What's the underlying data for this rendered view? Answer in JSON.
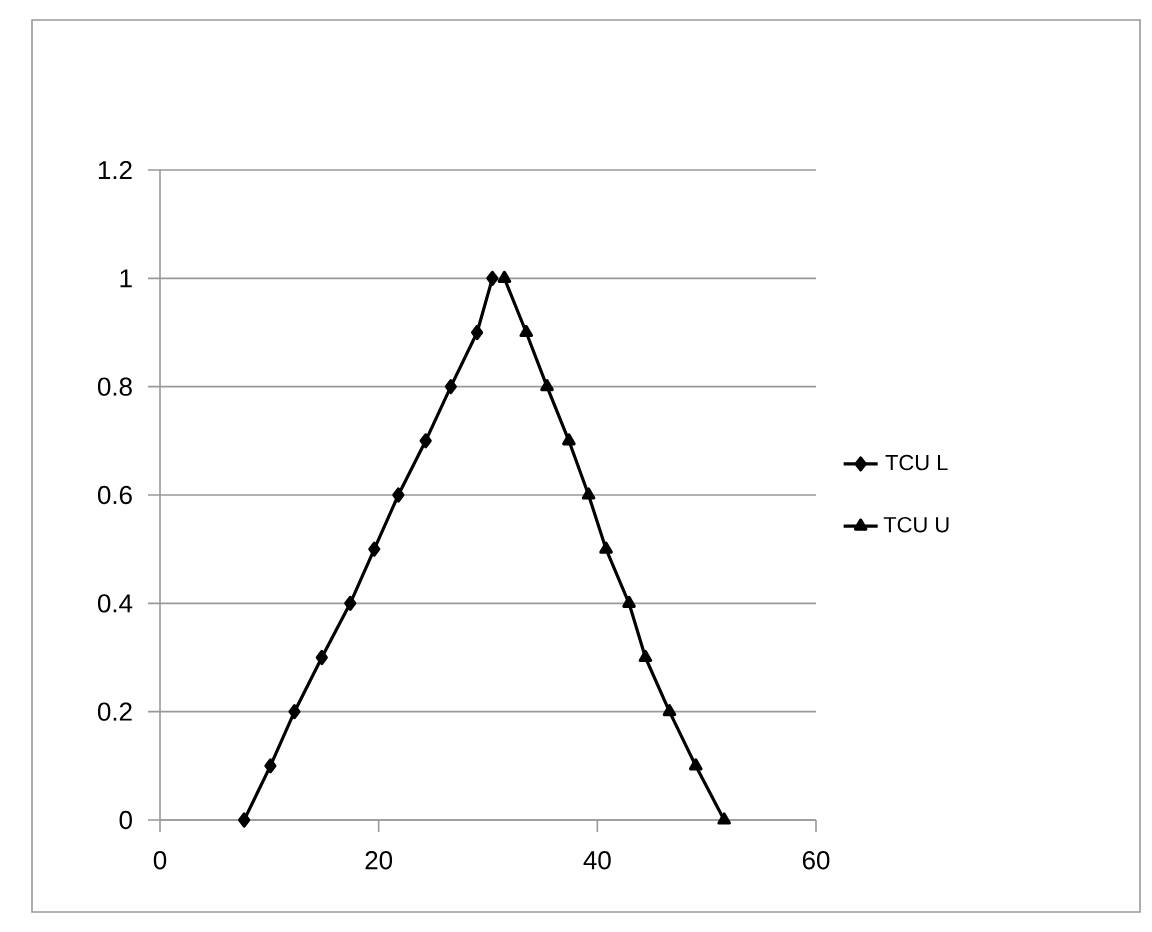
{
  "chart_data": {
    "type": "line",
    "x": [
      7.7,
      10.1,
      12.3,
      14.8,
      17.4,
      19.6,
      21.8,
      24.3,
      26.6,
      29.0,
      30.4
    ],
    "series": [
      {
        "name": "TCU L",
        "color": "#000000",
        "marker": "diamond",
        "values": [
          0,
          0.1,
          0.2,
          0.3,
          0.4,
          0.5,
          0.6,
          0.7,
          0.8,
          0.9,
          1.0
        ]
      },
      {
        "name": "TCU U",
        "color": "#000000",
        "marker": "triangle",
        "x": [
          31.5,
          33.5,
          35.4,
          37.4,
          39.2,
          40.8,
          42.9,
          44.4,
          46.6,
          49.0,
          51.6
        ],
        "values": [
          1.0,
          0.9,
          0.8,
          0.7,
          0.6,
          0.5,
          0.4,
          0.3,
          0.2,
          0.1,
          0
        ]
      }
    ],
    "xlim": [
      0,
      60
    ],
    "xticks": [
      0,
      20,
      40,
      60
    ],
    "ylim": [
      0,
      1.2
    ],
    "yticks": [
      0,
      0.2,
      0.4,
      0.6,
      0.8,
      1,
      1.2
    ],
    "grid": "y",
    "legend": "right",
    "line_style": "solid"
  }
}
